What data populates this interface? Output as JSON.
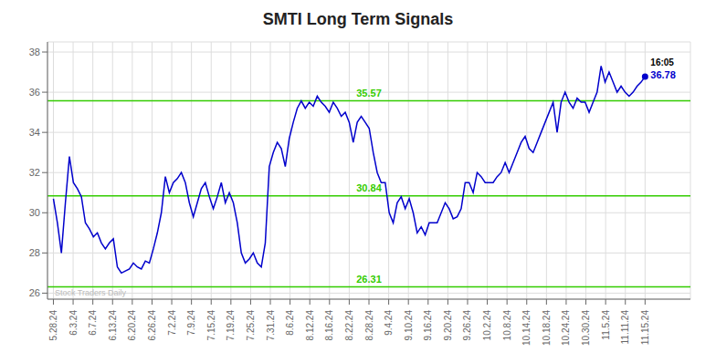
{
  "chart_data": {
    "type": "line",
    "title": "SMTI Long Term Signals",
    "color": "#0000cc",
    "x": [
      0,
      0.2027,
      0.4054,
      0.6081,
      0.8108,
      1.0135,
      1.2162,
      1.4189,
      1.6216,
      1.8243,
      2.027,
      2.2297,
      2.4324,
      2.6351,
      2.8378,
      3.0405,
      3.2432,
      3.4459,
      3.6486,
      3.8514,
      4.0541,
      4.2568,
      4.4595,
      4.6622,
      4.8649,
      5.0676,
      5.2703,
      5.473,
      5.6757,
      5.8784,
      6.0811,
      6.2838,
      6.4865,
      6.6892,
      6.8919,
      7.0946,
      7.2973,
      7.5,
      7.7027,
      7.9054,
      8.1081,
      8.3108,
      8.5135,
      8.7162,
      8.9189,
      9.1216,
      9.3243,
      9.527,
      9.7297,
      9.9324,
      10.1351,
      10.3378,
      10.5405,
      10.7432,
      10.9459,
      11.1486,
      11.3514,
      11.5541,
      11.7568,
      11.9595,
      12.1622,
      12.3649,
      12.5676,
      12.7703,
      12.973,
      13.1757,
      13.3784,
      13.5811,
      13.7838,
      13.9865,
      14.1892,
      14.3919,
      14.5946,
      14.7973,
      15,
      15.2027,
      15.4054,
      15.6081,
      15.8108,
      16.0135,
      16.2162,
      16.4189,
      16.6216,
      16.8243,
      17.027,
      17.2297,
      17.4324,
      17.6351,
      17.8378,
      18.0405,
      18.2432,
      18.4459,
      18.6486,
      18.8514,
      19.0541,
      19.2568,
      19.4595,
      19.6622,
      19.8649,
      20.0676,
      20.2703,
      20.473,
      20.6757,
      20.8784,
      21.0811,
      21.2838,
      21.4865,
      21.6892,
      21.8919,
      22.0946,
      22.2973,
      22.5,
      22.7027,
      22.9054,
      23.1081,
      23.3108,
      23.5135,
      23.7162,
      23.9189,
      24.1216,
      24.3243,
      24.527,
      24.7297,
      24.9324,
      25.1351,
      25.3378,
      25.5405,
      25.7432,
      25.9459,
      26.1486,
      26.3514,
      26.5541,
      26.7568,
      26.9595,
      27.1622,
      27.3649,
      27.5676,
      27.7703,
      27.973,
      28.1757,
      28.3784,
      28.5811,
      28.7838,
      28.9865,
      29.1892,
      29.3919,
      29.5946,
      29.7973,
      30
    ],
    "values": [
      30.7,
      29.5,
      28.0,
      30.5,
      32.8,
      31.5,
      31.2,
      30.8,
      29.5,
      29.2,
      28.8,
      29.0,
      28.5,
      28.2,
      28.5,
      28.7,
      27.3,
      27.0,
      27.1,
      27.2,
      27.5,
      27.3,
      27.2,
      27.6,
      27.5,
      28.2,
      29.0,
      30.0,
      31.8,
      31.0,
      31.5,
      31.7,
      32.0,
      31.5,
      30.5,
      29.8,
      30.5,
      31.2,
      31.5,
      30.8,
      30.2,
      30.8,
      31.5,
      30.5,
      31.0,
      30.5,
      29.5,
      28.0,
      27.5,
      27.7,
      28.0,
      27.5,
      27.3,
      28.5,
      32.3,
      33.0,
      33.5,
      33.2,
      32.3,
      33.7,
      34.5,
      35.2,
      35.57,
      35.2,
      35.5,
      35.3,
      35.8,
      35.5,
      35.3,
      35.0,
      35.5,
      35.2,
      34.8,
      35.0,
      34.5,
      33.5,
      34.5,
      34.8,
      34.5,
      34.2,
      33.0,
      32.0,
      31.5,
      31.5,
      30.0,
      29.5,
      30.5,
      30.8,
      30.2,
      30.7,
      30.0,
      29.0,
      29.3,
      28.9,
      29.5,
      29.5,
      29.5,
      30.0,
      30.5,
      30.2,
      29.7,
      29.8,
      30.2,
      31.5,
      31.5,
      31.0,
      32.0,
      31.8,
      31.5,
      31.5,
      31.5,
      31.8,
      32.0,
      32.5,
      32.0,
      32.5,
      33.0,
      33.5,
      33.8,
      33.2,
      33.0,
      33.5,
      34.0,
      34.5,
      35.0,
      35.5,
      34.0,
      35.5,
      36.0,
      35.5,
      35.2,
      35.7,
      35.5,
      35.5,
      35.0,
      35.5,
      36.0,
      37.3,
      36.5,
      37.0,
      36.5,
      36.0,
      36.3,
      36.0,
      35.8,
      36.0,
      36.3,
      36.5,
      36.78
    ],
    "xlim": [
      -0.3,
      32.3
    ],
    "xticks": [
      {
        "value": 0,
        "label": "5.28.24"
      },
      {
        "value": 1,
        "label": "6.3.24"
      },
      {
        "value": 2,
        "label": "6.7.24"
      },
      {
        "value": 3,
        "label": "6.13.24"
      },
      {
        "value": 4,
        "label": "6.20.24"
      },
      {
        "value": 5,
        "label": "6.26.24"
      },
      {
        "value": 6,
        "label": "7.2.24"
      },
      {
        "value": 7,
        "label": "7.9.24"
      },
      {
        "value": 8,
        "label": "7.15.24"
      },
      {
        "value": 9,
        "label": "7.19.24"
      },
      {
        "value": 10,
        "label": "7.25.24"
      },
      {
        "value": 11,
        "label": "7.31.24"
      },
      {
        "value": 12,
        "label": "8.6.24"
      },
      {
        "value": 13,
        "label": "8.12.24"
      },
      {
        "value": 14,
        "label": "8.16.24"
      },
      {
        "value": 15,
        "label": "8.22.24"
      },
      {
        "value": 16,
        "label": "8.28.24"
      },
      {
        "value": 17,
        "label": "9.4.24"
      },
      {
        "value": 18,
        "label": "9.10.24"
      },
      {
        "value": 19,
        "label": "9.16.24"
      },
      {
        "value": 20,
        "label": "9.20.24"
      },
      {
        "value": 21,
        "label": "9.26.24"
      },
      {
        "value": 22,
        "label": "10.2.24"
      },
      {
        "value": 23,
        "label": "10.8.24"
      },
      {
        "value": 24,
        "label": "10.14.24"
      },
      {
        "value": 25,
        "label": "10.18.24"
      },
      {
        "value": 26,
        "label": "10.24.24"
      },
      {
        "value": 27,
        "label": "10.30.24"
      },
      {
        "value": 28,
        "label": "11.5.24"
      },
      {
        "value": 29,
        "label": "11.11.24"
      },
      {
        "value": 30,
        "label": "11.15.24"
      }
    ],
    "ylim": [
      25.7,
      38.5
    ],
    "yticks": [
      26,
      28,
      30,
      32,
      34,
      36,
      38
    ],
    "grid": true,
    "reference_lines": [
      {
        "value": 26.31,
        "label": "26.31",
        "color": "#33cc00"
      },
      {
        "value": 30.84,
        "label": "30.84",
        "color": "#33cc00"
      },
      {
        "value": 35.57,
        "label": "35.57",
        "color": "#33cc00"
      }
    ],
    "last_point": {
      "time": "16:05",
      "value": 36.78
    },
    "watermark": "Stock Traders Daily"
  }
}
